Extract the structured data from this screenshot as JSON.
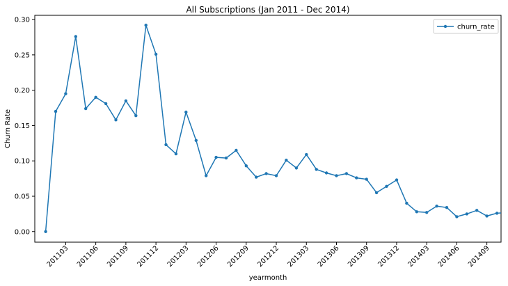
{
  "chart_data": {
    "type": "line",
    "title": "All Subscriptions (Jan 2011 - Dec 2014)",
    "xlabel": "yearmonth",
    "ylabel": "Churn Rate",
    "x_tick_labels": [
      "201103",
      "201106",
      "201109",
      "201112",
      "201203",
      "201206",
      "201209",
      "201212",
      "201303",
      "201306",
      "201309",
      "201312",
      "201403",
      "201406",
      "201409"
    ],
    "y_tick_labels": [
      "0.00",
      "0.05",
      "0.10",
      "0.15",
      "0.20",
      "0.25",
      "0.30"
    ],
    "ylim": [
      -0.015,
      0.306
    ],
    "grid": false,
    "legend_position": "top-right",
    "series": [
      {
        "name": "churn_rate",
        "color": "#1f77b4",
        "marker": "point",
        "x": [
          "201101",
          "201102",
          "201103",
          "201104",
          "201105",
          "201106",
          "201107",
          "201108",
          "201109",
          "201110",
          "201111",
          "201112",
          "201201",
          "201202",
          "201203",
          "201204",
          "201205",
          "201206",
          "201207",
          "201208",
          "201209",
          "201210",
          "201211",
          "201212",
          "201301",
          "201302",
          "201303",
          "201304",
          "201305",
          "201306",
          "201307",
          "201308",
          "201309",
          "201310",
          "201311",
          "201312",
          "201401",
          "201402",
          "201403",
          "201404",
          "201405",
          "201406",
          "201407",
          "201408",
          "201409",
          "201410",
          "201411"
        ],
        "values": [
          0.0,
          0.17,
          0.195,
          0.276,
          0.174,
          0.19,
          0.181,
          0.158,
          0.185,
          0.164,
          0.292,
          0.251,
          0.123,
          0.11,
          0.169,
          0.129,
          0.079,
          0.105,
          0.104,
          0.115,
          0.093,
          0.077,
          0.082,
          0.079,
          0.101,
          0.09,
          0.109,
          0.088,
          0.083,
          0.079,
          0.082,
          0.076,
          0.074,
          0.055,
          0.064,
          0.073,
          0.04,
          0.028,
          0.027,
          0.036,
          0.034,
          0.021,
          0.025,
          0.03,
          0.022,
          0.026,
          0.027
        ]
      }
    ]
  }
}
